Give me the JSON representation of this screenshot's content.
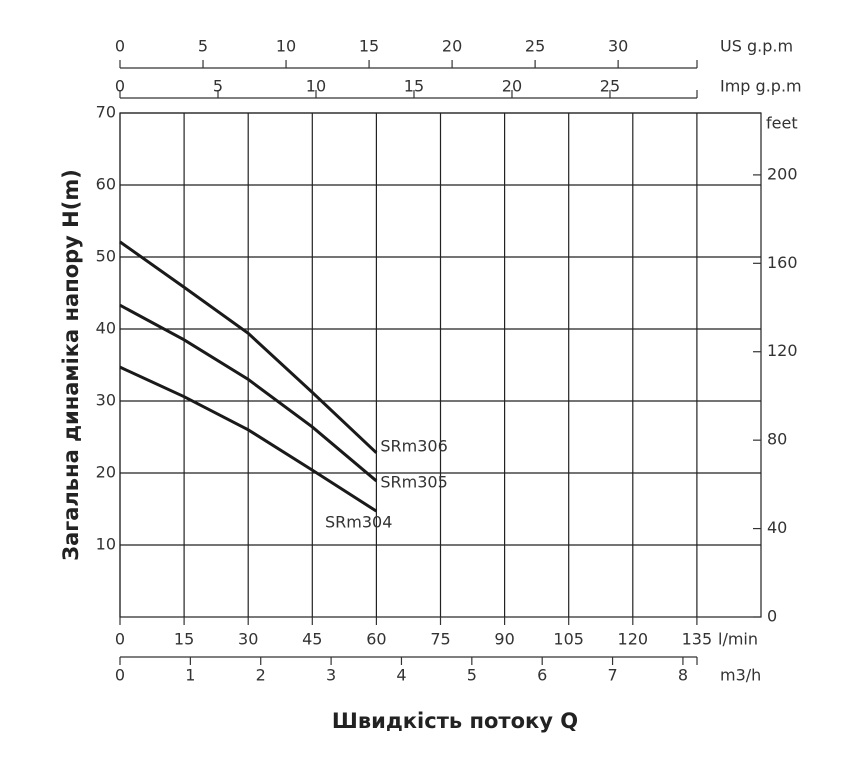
{
  "chart_data": {
    "type": "line",
    "ylabel": "Загальна динаміка напору H(m)",
    "xlabel": "Швидкість потоку Q",
    "x_unit": "l/min",
    "x": [
      0,
      15,
      30,
      45,
      60
    ],
    "xlim": [
      0,
      150
    ],
    "xticks": [
      0,
      15,
      30,
      45,
      60,
      75,
      90,
      105,
      120,
      135
    ],
    "ylim": [
      0,
      70
    ],
    "yticks": [
      10,
      20,
      30,
      40,
      50,
      60,
      70
    ],
    "y2_unit": "feet",
    "y2lim": [
      0,
      228
    ],
    "y2ticks": [
      0,
      40,
      80,
      120,
      160,
      200
    ],
    "grid": true,
    "series": [
      {
        "name": "SRm306",
        "color": "#1a1a1a",
        "values": [
          52.1,
          45.8,
          39.4,
          31.2,
          22.8
        ]
      },
      {
        "name": "SRm305",
        "color": "#1a1a1a",
        "values": [
          43.3,
          38.5,
          33,
          26.4,
          18.9
        ]
      },
      {
        "name": "SRm304",
        "color": "#1a1a1a",
        "values": [
          34.7,
          30.6,
          26,
          20.4,
          14.7
        ]
      }
    ],
    "extra_x_axes": [
      {
        "unit": "US g.p.m",
        "lim": [
          0,
          34.75
        ],
        "ticks": [
          0,
          5,
          10,
          15,
          20,
          25,
          30
        ]
      },
      {
        "unit": "Imp g.p.m",
        "lim": [
          0,
          29.44
        ],
        "ticks": [
          0,
          5,
          10,
          15,
          20,
          25
        ]
      },
      {
        "unit": "m3/h",
        "lim": [
          0,
          8.2
        ],
        "ticks": [
          0,
          1,
          2,
          3,
          4,
          5,
          6,
          7,
          8
        ]
      }
    ]
  }
}
